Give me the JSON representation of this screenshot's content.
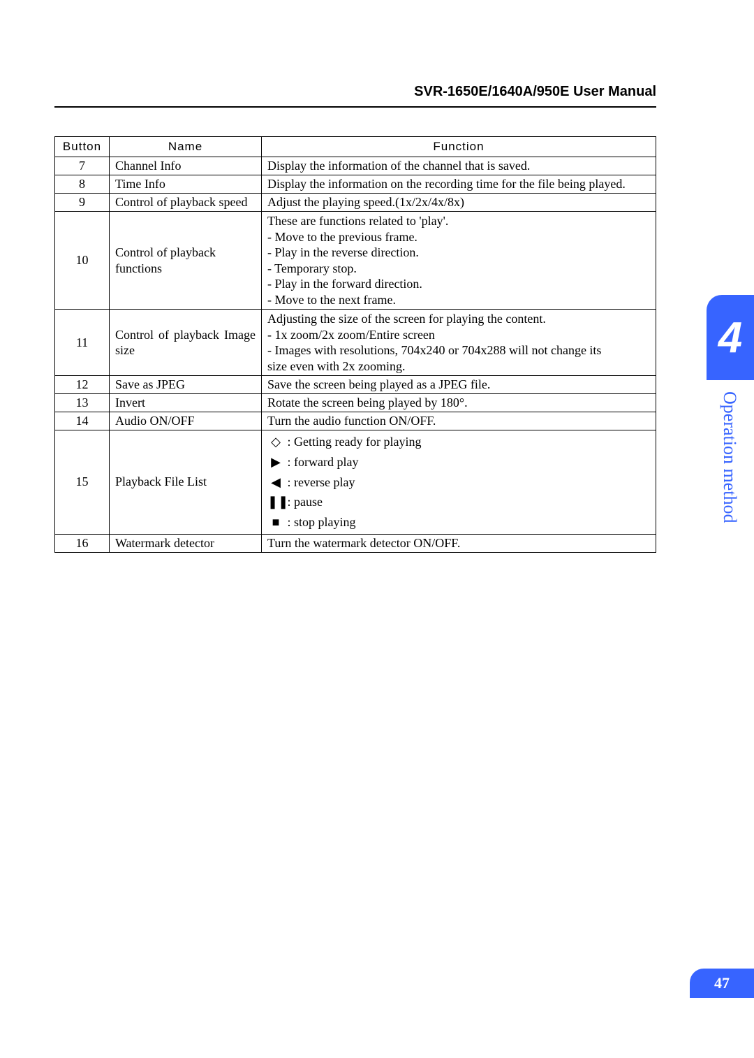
{
  "header": {
    "title": "SVR-1650E/1640A/950E User Manual"
  },
  "chapter": {
    "number": "4",
    "label": "Operation method"
  },
  "page": {
    "number": "47"
  },
  "table": {
    "headers": {
      "button": "Button",
      "name": "Name",
      "function": "Function"
    },
    "rows": [
      {
        "button": "7",
        "name": "Channel Info",
        "function": "Display the information of the channel that is saved."
      },
      {
        "button": "8",
        "name": "Time Info",
        "function": "Display the information on the recording time for the file being played."
      },
      {
        "button": "9",
        "name": "Control of playback speed",
        "function": "Adjust the playing speed.(1x/2x/4x/8x)"
      },
      {
        "button": "10",
        "name": "Control of playback functions",
        "function_lines": [
          "These are functions related to 'play'.",
          "- Move to the previous frame.",
          "- Play in the reverse direction.",
          "- Temporary stop.",
          "- Play in the forward direction.",
          "- Move to the next frame."
        ]
      },
      {
        "button": "11",
        "name": "Control of playback Image size",
        "function_lines": [
          "Adjusting the size of the screen for playing the content.",
          "- 1x zoom/2x zoom/Entire screen",
          "- Images with resolutions, 704x240 or 704x288 will not change its",
          "  size even with 2x zooming."
        ]
      },
      {
        "button": "12",
        "name": "Save as JPEG",
        "function": "Save the screen being played as a JPEG file."
      },
      {
        "button": "13",
        "name": "Invert",
        "function": "Rotate the screen being played by 180°."
      },
      {
        "button": "14",
        "name": "Audio ON/OFF",
        "function": "Turn the audio function ON/OFF."
      },
      {
        "button": "15",
        "name": "Playback File List",
        "icon_lines": [
          {
            "sym": "◇",
            "text": ": Getting ready for playing"
          },
          {
            "sym": "▶",
            "text": ": forward play"
          },
          {
            "sym": "◀",
            "text": ": reverse play"
          },
          {
            "sym": "❚❚",
            "text": ": pause"
          },
          {
            "sym": "■",
            "text": ": stop playing"
          }
        ]
      },
      {
        "button": "16",
        "name": "Watermark detector",
        "function": "Turn the watermark detector ON/OFF."
      }
    ]
  },
  "colors": {
    "accent": "#3764ff",
    "text": "#000000",
    "background": "#ffffff"
  }
}
